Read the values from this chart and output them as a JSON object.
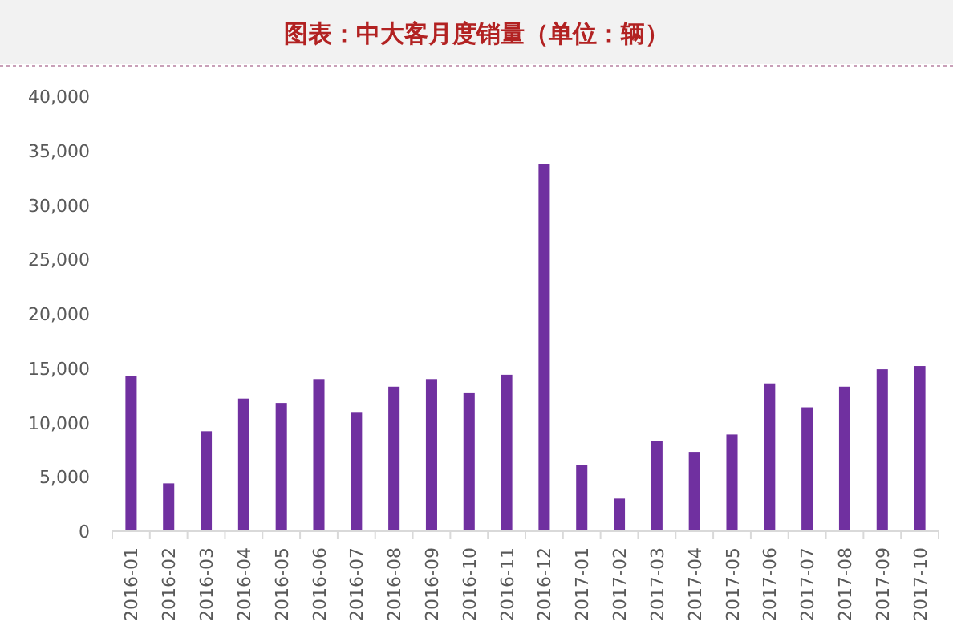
{
  "chart_data": {
    "type": "bar",
    "title": "图表：中大客月度销量（单位：辆）",
    "categories": [
      "2016-01",
      "2016-02",
      "2016-03",
      "2016-04",
      "2016-05",
      "2016-06",
      "2016-07",
      "2016-08",
      "2016-09",
      "2016-10",
      "2016-11",
      "2016-12",
      "2017-01",
      "2017-02",
      "2017-03",
      "2017-04",
      "2017-05",
      "2017-06",
      "2017-07",
      "2017-08",
      "2017-09",
      "2017-10"
    ],
    "values": [
      14300,
      4400,
      9200,
      12200,
      11800,
      14000,
      10900,
      13300,
      14000,
      12700,
      14400,
      33800,
      6100,
      3000,
      8300,
      7300,
      8900,
      13600,
      11400,
      13300,
      14900,
      15200
    ],
    "color": "#7030a0",
    "ylim": [
      0,
      40000
    ],
    "yticks": [
      {
        "value": 0,
        "label": "0"
      },
      {
        "value": 5000,
        "label": "5,000"
      },
      {
        "value": 10000,
        "label": "10,000"
      },
      {
        "value": 15000,
        "label": "15,000"
      },
      {
        "value": 20000,
        "label": "20,000"
      },
      {
        "value": 25000,
        "label": "25,000"
      },
      {
        "value": 30000,
        "label": "30,000"
      },
      {
        "value": 35000,
        "label": "35,000"
      },
      {
        "value": 40000,
        "label": "40,000"
      }
    ]
  }
}
